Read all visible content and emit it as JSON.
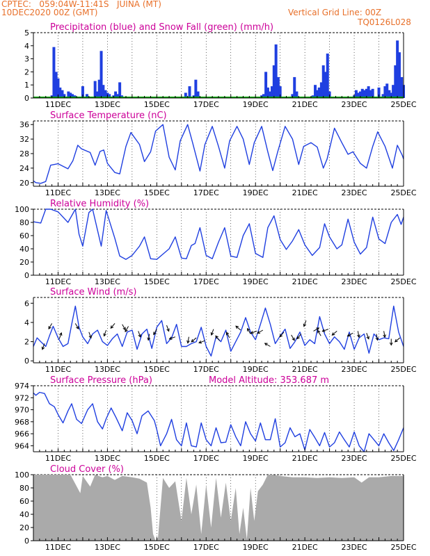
{
  "header": {
    "line1": "CPTEC:   059:04W-11:41S   JUINA (MT)",
    "line2": "10DEC2020 00Z (GMT)",
    "grid_note": "Vertical Grid Line: 00Z",
    "code": "TQ0126L028"
  },
  "colors": {
    "header": "#e8702a",
    "titles": "#cc0099",
    "line": "#1f3fe0",
    "snow": "#00aa00",
    "cloud": "#aaaaaa",
    "grid": "#000000"
  },
  "x_axis": {
    "start_day": 10,
    "end_day": 25,
    "tick_labels": [
      "11DEC",
      "13DEC",
      "15DEC",
      "17DEC",
      "19DEC",
      "21DEC",
      "23DEC",
      "25DEC"
    ]
  },
  "chart_data": [
    {
      "id": "precip",
      "type": "bar",
      "title": "Precipitation (blue) and Snow Fall (green) (mm/h)",
      "ylim": [
        0,
        5
      ],
      "yticks": [
        0,
        1,
        2,
        3,
        4,
        5
      ],
      "series": [
        {
          "name": "Precipitation",
          "x": [
            10.75,
            10.83,
            10.92,
            11.0,
            11.08,
            11.17,
            11.25,
            11.33,
            11.42,
            11.5,
            11.58,
            11.67,
            11.75,
            12.0,
            12.17,
            12.5,
            12.58,
            12.67,
            12.75,
            12.83,
            12.92,
            13.0,
            13.08,
            13.17,
            13.25,
            13.33,
            13.42,
            13.5,
            13.58,
            15.67,
            16.0,
            16.17,
            16.33,
            16.5,
            16.58,
            16.67,
            19.25,
            19.33,
            19.42,
            19.5,
            19.58,
            19.67,
            19.75,
            19.83,
            19.92,
            20.0,
            20.5,
            20.58,
            20.67,
            21.33,
            21.42,
            21.5,
            21.58,
            21.67,
            21.75,
            21.83,
            21.92,
            22.0,
            22.17,
            23.0,
            23.08,
            23.17,
            23.25,
            23.33,
            23.42,
            23.5,
            23.58,
            23.67,
            23.75,
            24.0,
            24.17,
            24.25,
            24.33,
            24.42,
            24.5,
            24.58,
            24.67,
            24.75,
            24.83,
            24.92,
            25.0
          ],
          "values": [
            0.2,
            3.9,
            2.0,
            1.5,
            0.8,
            0.6,
            0.3,
            0.1,
            0.5,
            0.4,
            0.3,
            0.2,
            0.1,
            0.9,
            0.3,
            1.3,
            0.5,
            1.4,
            3.6,
            1.0,
            0.6,
            0.4,
            0.3,
            0.1,
            0.2,
            0.5,
            0.3,
            1.2,
            0.2,
            0.1,
            0.1,
            0.4,
            0.9,
            0.2,
            1.4,
            0.5,
            0.2,
            0.3,
            2.0,
            0.8,
            0.5,
            0.9,
            2.5,
            4.1,
            1.6,
            0.9,
            0.3,
            1.6,
            0.5,
            0.2,
            1.0,
            0.6,
            0.8,
            1.2,
            2.5,
            2.0,
            3.4,
            0.5,
            0.1,
            0.2,
            0.6,
            0.4,
            0.5,
            0.7,
            0.6,
            0.7,
            0.9,
            0.6,
            0.7,
            0.8,
            0.3,
            0.9,
            1.1,
            0.6,
            0.4,
            1.0,
            2.5,
            4.4,
            3.5,
            1.6,
            1.0
          ]
        },
        {
          "name": "Snow Fall",
          "x": [
            10.0,
            25.0
          ],
          "values": [
            0,
            0
          ]
        }
      ]
    },
    {
      "id": "temperature",
      "type": "line",
      "title": "Surface Temperature (nC)",
      "ylim": [
        19,
        37
      ],
      "yticks": [
        20,
        24,
        28,
        32,
        36
      ],
      "series": [
        {
          "name": "Surface Temperature",
          "x": [
            10.0,
            10.1,
            10.3,
            10.5,
            10.7,
            11.0,
            11.4,
            11.6,
            11.8,
            11.95,
            12.3,
            12.5,
            12.7,
            12.85,
            13.0,
            13.3,
            13.5,
            13.75,
            13.95,
            14.3,
            14.5,
            14.75,
            14.95,
            15.25,
            15.5,
            15.75,
            15.95,
            16.25,
            16.45,
            16.75,
            16.95,
            17.25,
            17.5,
            17.75,
            17.95,
            18.25,
            18.5,
            18.75,
            18.95,
            19.25,
            19.5,
            19.7,
            19.9,
            20.2,
            20.5,
            20.75,
            20.95,
            21.25,
            21.5,
            21.75,
            21.9,
            22.2,
            22.5,
            22.75,
            22.95,
            23.25,
            23.5,
            23.75,
            23.95,
            24.25,
            24.55,
            24.75,
            24.95,
            25.0
          ],
          "values": [
            20.5,
            20.0,
            19.8,
            20.3,
            24.8,
            25.2,
            23.8,
            26.0,
            30.3,
            29.3,
            28.3,
            24.8,
            28.6,
            29.0,
            25.3,
            22.8,
            22.4,
            30.0,
            33.8,
            30.5,
            25.8,
            28.5,
            34.2,
            36.0,
            27.0,
            23.5,
            31.5,
            36.0,
            31.0,
            23.2,
            30.5,
            35.5,
            30.0,
            24.0,
            31.5,
            35.5,
            32.0,
            25.0,
            31.0,
            35.5,
            28.5,
            23.3,
            28.5,
            35.5,
            32.0,
            25.0,
            30.0,
            31.0,
            29.8,
            24.0,
            26.5,
            35.0,
            31.0,
            27.8,
            28.5,
            25.3,
            24.0,
            30.0,
            34.0,
            30.0,
            24.0,
            30.3,
            27.5,
            26.5
          ]
        }
      ]
    },
    {
      "id": "humidity",
      "type": "line",
      "title": "Relative Humidity (%)",
      "ylim": [
        0,
        100
      ],
      "yticks": [
        0,
        20,
        40,
        60,
        80,
        100
      ],
      "series": [
        {
          "name": "Relative Humidity",
          "x": [
            10.0,
            10.3,
            10.5,
            10.7,
            11.0,
            11.4,
            11.7,
            11.85,
            12.0,
            12.25,
            12.4,
            12.75,
            12.95,
            13.3,
            13.5,
            13.75,
            14.0,
            14.3,
            14.5,
            14.75,
            15.0,
            15.25,
            15.5,
            15.75,
            16.0,
            16.2,
            16.4,
            16.55,
            16.75,
            17.0,
            17.25,
            17.5,
            17.75,
            18.0,
            18.25,
            18.5,
            18.75,
            19.0,
            19.3,
            19.5,
            19.75,
            20.0,
            20.25,
            20.5,
            20.75,
            21.0,
            21.3,
            21.6,
            21.8,
            22.0,
            22.3,
            22.5,
            22.75,
            23.0,
            23.25,
            23.5,
            23.75,
            24.0,
            24.25,
            24.5,
            24.75,
            24.9,
            25.0
          ],
          "values": [
            81,
            79,
            100,
            100,
            96,
            80,
            100,
            62,
            44,
            95,
            100,
            44,
            98,
            56,
            29,
            24,
            30,
            44,
            58,
            25,
            24,
            32,
            40,
            58,
            26,
            25,
            45,
            48,
            72,
            30,
            25,
            50,
            72,
            29,
            27,
            60,
            78,
            33,
            27,
            72,
            90,
            54,
            39,
            52,
            69,
            46,
            30,
            42,
            78,
            58,
            40,
            46,
            85,
            50,
            32,
            42,
            88,
            55,
            48,
            80,
            92,
            77,
            88
          ]
        }
      ]
    },
    {
      "id": "wind",
      "type": "line",
      "title": "Surface Wind (m/s)",
      "ylim": [
        -0.2,
        6.6
      ],
      "yticks": [
        0,
        2,
        4,
        6
      ],
      "series": [
        {
          "name": "Surface Wind",
          "x": [
            10.0,
            10.15,
            10.3,
            10.5,
            10.65,
            10.8,
            11.0,
            11.2,
            11.4,
            11.55,
            11.7,
            11.85,
            12.0,
            12.2,
            12.4,
            12.6,
            12.8,
            13.0,
            13.2,
            13.4,
            13.6,
            13.8,
            14.0,
            14.2,
            14.4,
            14.6,
            14.8,
            15.0,
            15.2,
            15.4,
            15.6,
            15.8,
            16.0,
            16.2,
            16.4,
            16.6,
            16.8,
            17.0,
            17.2,
            17.4,
            17.6,
            17.8,
            18.0,
            18.2,
            18.4,
            18.6,
            18.8,
            19.0,
            19.2,
            19.4,
            19.6,
            19.8,
            20.0,
            20.2,
            20.4,
            20.6,
            20.8,
            21.0,
            21.2,
            21.4,
            21.6,
            21.8,
            22.0,
            22.2,
            22.4,
            22.6,
            22.8,
            23.0,
            23.2,
            23.4,
            23.6,
            23.8,
            24.0,
            24.2,
            24.4,
            24.6,
            24.8,
            25.0
          ],
          "values": [
            1.5,
            2.4,
            2.0,
            1.5,
            2.6,
            3.6,
            2.4,
            1.5,
            1.8,
            3.8,
            5.7,
            3.5,
            2.5,
            1.8,
            2.8,
            3.2,
            2.0,
            1.6,
            2.3,
            2.8,
            1.5,
            3.0,
            3.2,
            1.2,
            2.8,
            3.3,
            1.3,
            3.5,
            4.2,
            1.8,
            2.4,
            3.8,
            1.5,
            1.5,
            1.8,
            2.0,
            3.5,
            1.5,
            0.5,
            2.5,
            2.0,
            3.2,
            1.0,
            2.0,
            3.0,
            4.5,
            3.0,
            2.2,
            3.8,
            5.5,
            3.8,
            1.8,
            2.6,
            3.3,
            1.3,
            2.0,
            3.0,
            1.6,
            2.2,
            1.8,
            4.6,
            2.8,
            1.8,
            2.5,
            2.0,
            1.2,
            3.0,
            1.2,
            2.4,
            2.8,
            0.8,
            2.8,
            2.2,
            2.4,
            2.3,
            5.7,
            3.0,
            1.5
          ]
        },
        {
          "name": "Wind direction",
          "x": [
            10.45,
            10.75,
            11.05,
            11.7,
            12.25,
            12.95,
            13.3,
            13.6,
            13.85,
            14.25,
            14.7,
            15.0,
            15.4,
            15.75,
            16.3,
            16.6,
            16.95,
            17.3,
            17.55,
            17.95,
            18.4,
            18.8,
            19.05,
            19.3,
            19.6,
            20.15,
            20.45,
            20.85,
            21.05,
            21.35,
            21.65,
            21.95,
            22.3,
            22.95,
            23.15,
            23.5,
            23.9,
            24.2,
            24.5,
            24.85
          ],
          "values": [
            1.8,
            3.9,
            2.3,
            3.9,
            3.0,
            3.2,
            3.9,
            3.8,
            3.6,
            3.1,
            2.8,
            3.3,
            3.7,
            2.5,
            2.5,
            2.4,
            2.1,
            3.3,
            2.1,
            2.4,
            3.2,
            2.8,
            3.1,
            3.2,
            1.5,
            3.0,
            2.7,
            2.8,
            4.2,
            3.1,
            2.6,
            3.3,
            3.1,
            2.9,
            3.1,
            2.9,
            2.8,
            3.1,
            2.3,
            2.4
          ]
        }
      ]
    },
    {
      "id": "pressure",
      "type": "line",
      "title": "Surface Pressure (hPa)",
      "annotation": "Model Altitude: 353.687 m",
      "ylim": [
        963,
        974
      ],
      "yticks": [
        964,
        966,
        968,
        970,
        972,
        974
      ],
      "series": [
        {
          "name": "Surface Pressure",
          "x": [
            10.0,
            10.1,
            10.25,
            10.45,
            10.65,
            10.85,
            11.0,
            11.2,
            11.4,
            11.55,
            11.75,
            11.95,
            12.2,
            12.4,
            12.6,
            12.8,
            12.95,
            13.15,
            13.35,
            13.6,
            13.8,
            14.0,
            14.2,
            14.4,
            14.65,
            14.9,
            15.0,
            15.15,
            15.4,
            15.6,
            15.8,
            16.0,
            16.2,
            16.4,
            16.6,
            16.8,
            17.0,
            17.2,
            17.4,
            17.6,
            17.8,
            18.0,
            18.2,
            18.4,
            18.6,
            18.8,
            19.0,
            19.2,
            19.4,
            19.6,
            19.8,
            20.0,
            20.2,
            20.4,
            20.6,
            20.8,
            21.0,
            21.2,
            21.4,
            21.6,
            21.8,
            22.0,
            22.2,
            22.4,
            22.6,
            22.8,
            23.0,
            23.2,
            23.4,
            23.6,
            23.8,
            24.0,
            24.2,
            24.4,
            24.6,
            24.8,
            25.0
          ],
          "values": [
            972.8,
            972.4,
            972.9,
            972.7,
            971.0,
            970.5,
            969.2,
            967.8,
            969.8,
            971.0,
            968.4,
            967.7,
            970.0,
            971.0,
            968.0,
            966.8,
            968.5,
            970.3,
            968.7,
            966.5,
            969.5,
            968.2,
            966.0,
            969.0,
            969.8,
            968.2,
            966.7,
            964.0,
            966.0,
            968.4,
            965.0,
            964.0,
            967.8,
            964.0,
            963.8,
            967.8,
            965.0,
            964.0,
            967.0,
            964.5,
            964.6,
            967.5,
            965.5,
            964.0,
            968.0,
            966.0,
            964.8,
            967.8,
            965.0,
            965.0,
            968.5,
            963.8,
            964.5,
            967.0,
            965.5,
            966.0,
            963.3,
            966.7,
            965.4,
            964.0,
            966.2,
            963.8,
            964.5,
            966.3,
            965.0,
            963.8,
            966.3,
            964.0,
            962.8,
            966.0,
            965.0,
            964.0,
            966.0,
            964.5,
            963.2,
            965.0,
            967.0
          ]
        }
      ]
    },
    {
      "id": "cloud",
      "type": "area",
      "title": "Cloud Cover (%)",
      "ylim": [
        0,
        100
      ],
      "yticks": [
        0,
        20,
        40,
        60,
        80,
        100
      ],
      "series": [
        {
          "name": "Cloud Cover",
          "x": [
            10.0,
            10.5,
            11.0,
            11.5,
            11.9,
            12.0,
            12.3,
            12.5,
            12.8,
            13.0,
            13.3,
            13.6,
            14.0,
            14.3,
            14.6,
            14.75,
            14.85,
            14.95,
            15.05,
            15.25,
            15.5,
            15.75,
            16.0,
            16.2,
            16.4,
            16.6,
            16.8,
            17.0,
            17.2,
            17.4,
            17.6,
            17.8,
            18.0,
            18.2,
            18.35,
            18.5,
            18.65,
            18.8,
            18.95,
            19.1,
            19.3,
            19.5,
            19.7,
            20.0,
            20.5,
            21.0,
            21.5,
            22.0,
            22.5,
            23.0,
            23.3,
            23.6,
            24.0,
            24.5,
            25.0
          ],
          "values": [
            100,
            100,
            100,
            100,
            72,
            98,
            82,
            100,
            96,
            98,
            92,
            98,
            96,
            94,
            88,
            50,
            10,
            0,
            5,
            95,
            80,
            90,
            30,
            95,
            40,
            85,
            10,
            85,
            20,
            95,
            35,
            88,
            30,
            80,
            10,
            50,
            2,
            80,
            30,
            75,
            85,
            100,
            100,
            98,
            96,
            96,
            95,
            96,
            95,
            96,
            88,
            96,
            96,
            98,
            98
          ]
        }
      ]
    }
  ]
}
